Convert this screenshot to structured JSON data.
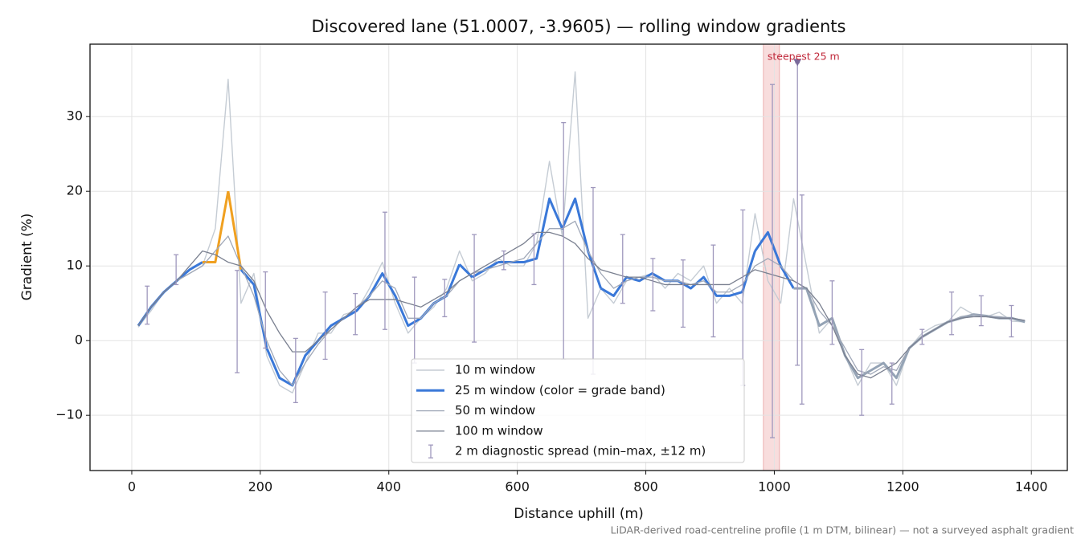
{
  "chart_data": {
    "type": "line",
    "title": "Discovered lane (51.0007, -3.9605) — rolling window gradients",
    "x_label": "Distance uphill (m)",
    "y_label": "Gradient (%)",
    "footnote": "LiDAR-derived road-centreline profile (1 m DTM, bilinear) — not a surveyed asphalt gradient",
    "xlim": [
      -65,
      1456
    ],
    "ylim": [
      -17.4,
      39.7
    ],
    "xticks": [
      0,
      200,
      400,
      600,
      800,
      1000,
      1200,
      1400
    ],
    "yticks": [
      {
        "value": -10,
        "label": "−10"
      },
      0,
      10,
      20,
      30
    ],
    "grid": true,
    "legend": "lower center",
    "x": [
      10,
      30,
      50,
      70,
      90,
      110,
      130,
      150,
      170,
      190,
      210,
      230,
      250,
      270,
      290,
      310,
      330,
      350,
      370,
      390,
      410,
      430,
      450,
      470,
      490,
      510,
      530,
      550,
      570,
      590,
      610,
      630,
      650,
      670,
      690,
      710,
      730,
      750,
      770,
      790,
      810,
      830,
      850,
      870,
      890,
      910,
      930,
      950,
      970,
      990,
      1010,
      1030,
      1050,
      1070,
      1090,
      1110,
      1130,
      1150,
      1170,
      1190,
      1210,
      1230,
      1250,
      1270,
      1290,
      1310,
      1330,
      1350,
      1370,
      1390
    ],
    "series": [
      {
        "name": "10 m window",
        "color": "#c5ccd4",
        "width": 1.4,
        "values": [
          1.8,
          4,
          6.5,
          8,
          9,
          10,
          15,
          35,
          5,
          9,
          -2,
          -6,
          -7,
          -3,
          1,
          1,
          3.5,
          4,
          7,
          10.5,
          5,
          1,
          3,
          4.5,
          7,
          12,
          8,
          9,
          11,
          10,
          10,
          13,
          24,
          14,
          36,
          3,
          7,
          5,
          8,
          8.5,
          9,
          7,
          9,
          8,
          10,
          5,
          7,
          5,
          17,
          8,
          5,
          19,
          10,
          1,
          3,
          -2,
          -6,
          -3,
          -3,
          -6,
          -1,
          1,
          2,
          2.5,
          4.5,
          3.5,
          3.2,
          3.8,
          2.6,
          2.5
        ]
      },
      {
        "name": "25 m window (color = grade band)",
        "color": "#3a78d8",
        "base_color": "#94a3b5",
        "width": 3,
        "grade_bands": [
          {
            "from": 10,
            "color": "#3a78d8"
          },
          {
            "from": 20,
            "color": "#f0a020"
          }
        ],
        "values": [
          2,
          4.5,
          6.5,
          8,
          9.5,
          10.5,
          10.5,
          20,
          9.5,
          7.5,
          -1,
          -5,
          -6,
          -2,
          0,
          2,
          3,
          4,
          6,
          9,
          6,
          2,
          3,
          5,
          6,
          10.2,
          8.5,
          9.5,
          10.5,
          10.5,
          10.5,
          11,
          19,
          15,
          19,
          12,
          7,
          6,
          8.5,
          8,
          9,
          8,
          8,
          7,
          8.5,
          6,
          6,
          6.5,
          12,
          14.5,
          10,
          7,
          7,
          2,
          3,
          -2,
          -5,
          -4,
          -3,
          -5,
          -1,
          0.5,
          1.5,
          2.5,
          3,
          3.5,
          3.3,
          3,
          3,
          2.5
        ]
      },
      {
        "name": "50 m window",
        "color": "#a0a8b8",
        "width": 1.3,
        "values": [
          2,
          4.5,
          6.5,
          8,
          9,
          10,
          12,
          14,
          10,
          6,
          0,
          -4,
          -6,
          -3,
          -0.5,
          1.5,
          3,
          4.5,
          6,
          8,
          7,
          3,
          3,
          5,
          6,
          8,
          9,
          9.5,
          10,
          10.5,
          11,
          13,
          15,
          15,
          16,
          12,
          9,
          7,
          8,
          8.5,
          8.5,
          8,
          8,
          7.5,
          8,
          6.5,
          6.5,
          7.5,
          10,
          11,
          10,
          8,
          7,
          4,
          2,
          -1,
          -4,
          -4.5,
          -3.5,
          -4,
          -1,
          0.5,
          1.5,
          2.5,
          3.2,
          3.5,
          3.3,
          3.2,
          3,
          2.7
        ]
      },
      {
        "name": "100 m window",
        "color": "#7a8090",
        "width": 1.3,
        "values": [
          2,
          4.5,
          6.5,
          8,
          10,
          12,
          11.5,
          10.5,
          10,
          8,
          4,
          1,
          -1.5,
          -1.5,
          0,
          1.5,
          3,
          4.5,
          5.5,
          5.5,
          5.5,
          5,
          4.5,
          5.5,
          6.5,
          8,
          9,
          10,
          11,
          12,
          13,
          14.5,
          14.5,
          14,
          13,
          11,
          9.5,
          9,
          8.5,
          8.5,
          8,
          7.5,
          7.5,
          7.5,
          7.5,
          7.5,
          7.5,
          8.5,
          9.5,
          9,
          8.5,
          8,
          7,
          5,
          2,
          -2,
          -4.5,
          -5,
          -4,
          -3,
          -1,
          0.5,
          1.5,
          2.5,
          3,
          3.2,
          3.2,
          3,
          3,
          2.7
        ]
      }
    ],
    "errorbars": {
      "name": "2 m diagnostic spread (min–max, ±12 m)",
      "color": "#9f98bd",
      "x": [
        24,
        69,
        164,
        208,
        255,
        301,
        348,
        394,
        440,
        487,
        533,
        579,
        626,
        672,
        718,
        764,
        811,
        858,
        905,
        951,
        997,
        1036,
        1043,
        1090,
        1136,
        1183,
        1230,
        1276,
        1322,
        1369
      ],
      "low": [
        2.2,
        7.5,
        -4.3,
        -1,
        -8.3,
        -2.5,
        0.8,
        1.5,
        -3,
        3.2,
        -0.2,
        9.5,
        7.5,
        -2.5,
        -4.5,
        5,
        4,
        1.8,
        0.5,
        -6,
        -13,
        -3.3,
        -8.5,
        -0.5,
        -10,
        -8.5,
        -0.5,
        0.8,
        2,
        0.5
      ],
      "high": [
        7.3,
        11.5,
        9.4,
        9.2,
        0.3,
        6.5,
        6.3,
        17.2,
        8.5,
        8.2,
        14.2,
        12,
        14.3,
        29.2,
        20.5,
        14.2,
        11,
        10.8,
        12.8,
        17.5,
        34.3,
        37.2,
        19.5,
        8,
        -1.2,
        -3,
        1.5,
        6.5,
        6,
        4.7
      ]
    },
    "highlight": {
      "label": "steepest 25 m",
      "x": [
        983,
        1008
      ],
      "color": "#f4c6c6"
    },
    "peak_marker": {
      "x": 1036,
      "y": 37.3,
      "color": "#7a6a9a"
    }
  }
}
